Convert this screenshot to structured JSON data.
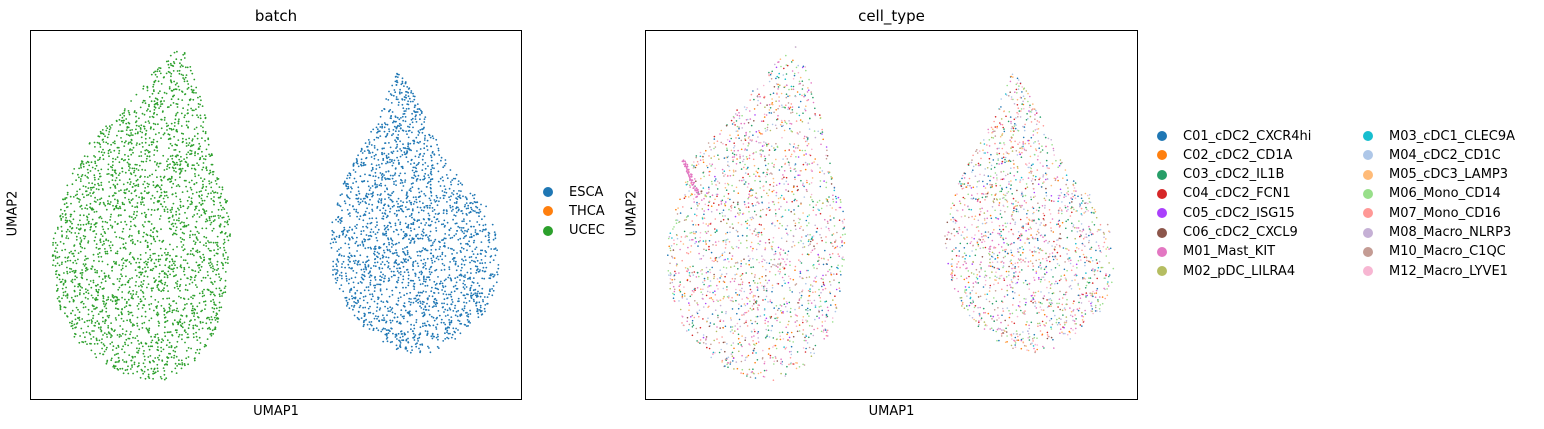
{
  "chart_data": [
    {
      "type": "scatter",
      "title": "batch",
      "xlabel": "UMAP1",
      "ylabel": "UMAP2",
      "grid": false,
      "ticks": false,
      "legend_placement": "right",
      "series": [
        {
          "name": "ESCA",
          "color": "#1f77b4"
        },
        {
          "name": "THCA",
          "color": "#ff7f0e"
        },
        {
          "name": "UCEC",
          "color": "#2ca02c"
        }
      ],
      "clusters": [
        {
          "label": "UCEC",
          "center": [
            -5.0,
            0.0
          ],
          "shape": "left-teardrop"
        },
        {
          "label": "ESCA",
          "center": [
            5.0,
            0.0
          ],
          "shape": "right-teardrop"
        }
      ]
    },
    {
      "type": "scatter",
      "title": "cell_type",
      "xlabel": "UMAP1",
      "ylabel": "UMAP2",
      "grid": false,
      "ticks": false,
      "legend_placement": "right",
      "series": [
        {
          "name": "C01_cDC2_CXCR4hi",
          "color": "#1f77b4"
        },
        {
          "name": "C02_cDC2_CD1A",
          "color": "#ff7f0e"
        },
        {
          "name": "C03_cDC2_IL1B",
          "color": "#279e68"
        },
        {
          "name": "C04_cDC2_FCN1",
          "color": "#d62728"
        },
        {
          "name": "C05_cDC2_ISG15",
          "color": "#aa40fc"
        },
        {
          "name": "C06_cDC2_CXCL9",
          "color": "#8c564b"
        },
        {
          "name": "M01_Mast_KIT",
          "color": "#e377c2"
        },
        {
          "name": "M02_pDC_LILRA4",
          "color": "#b5bd61"
        },
        {
          "name": "M03_cDC1_CLEC9A",
          "color": "#17becf"
        },
        {
          "name": "M04_cDC2_CD1C",
          "color": "#aec7e8"
        },
        {
          "name": "M05_cDC3_LAMP3",
          "color": "#ffbb78"
        },
        {
          "name": "M06_Mono_CD14",
          "color": "#98df8a"
        },
        {
          "name": "M07_Mono_CD16",
          "color": "#ff9896"
        },
        {
          "name": "M08_Macro_NLRP3",
          "color": "#c5b0d5"
        },
        {
          "name": "M10_Macro_C1QC",
          "color": "#c49c94"
        },
        {
          "name": "M12_Macro_LYVE1",
          "color": "#f7b6d2"
        }
      ]
    }
  ]
}
